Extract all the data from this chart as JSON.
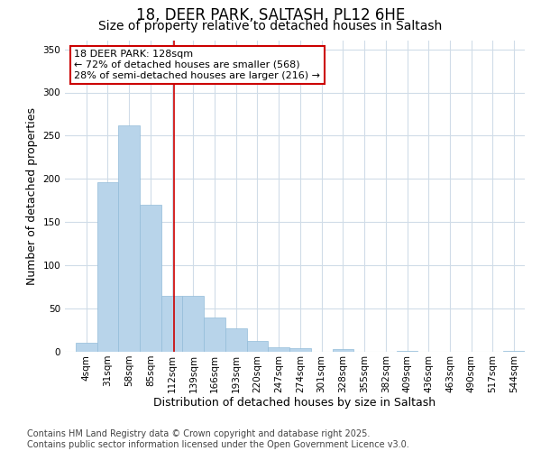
{
  "title1": "18, DEER PARK, SALTASH, PL12 6HE",
  "title2": "Size of property relative to detached houses in Saltash",
  "xlabel": "Distribution of detached houses by size in Saltash",
  "ylabel": "Number of detached properties",
  "annotation_line1": "18 DEER PARK: 128sqm",
  "annotation_line2": "← 72% of detached houses are smaller (568)",
  "annotation_line3": "28% of semi-detached houses are larger (216) →",
  "bar_color": "#b8d4ea",
  "bar_edge_color": "#93bcd9",
  "vline_color": "#cc0000",
  "vline_x_idx": 4,
  "annotation_box_color": "#cc0000",
  "bg_color": "#ffffff",
  "grid_color": "#d0dce8",
  "tick_labels": [
    "4sqm",
    "31sqm",
    "58sqm",
    "85sqm",
    "112sqm",
    "139sqm",
    "166sqm",
    "193sqm",
    "220sqm",
    "247sqm",
    "274sqm",
    "301sqm",
    "328sqm",
    "355sqm",
    "382sqm",
    "409sqm",
    "436sqm",
    "463sqm",
    "490sqm",
    "517sqm",
    "544sqm"
  ],
  "bar_heights": [
    10,
    196,
    262,
    170,
    65,
    65,
    40,
    27,
    13,
    5,
    4,
    0,
    3,
    0,
    0,
    1,
    0,
    0,
    0,
    0,
    1
  ],
  "ylim": [
    0,
    360
  ],
  "yticks": [
    0,
    50,
    100,
    150,
    200,
    250,
    300,
    350
  ],
  "footer_line1": "Contains HM Land Registry data © Crown copyright and database right 2025.",
  "footer_line2": "Contains public sector information licensed under the Open Government Licence v3.0.",
  "title_fontsize": 12,
  "subtitle_fontsize": 10,
  "axis_label_fontsize": 9,
  "tick_fontsize": 7.5,
  "footer_fontsize": 7,
  "annotation_fontsize": 8
}
